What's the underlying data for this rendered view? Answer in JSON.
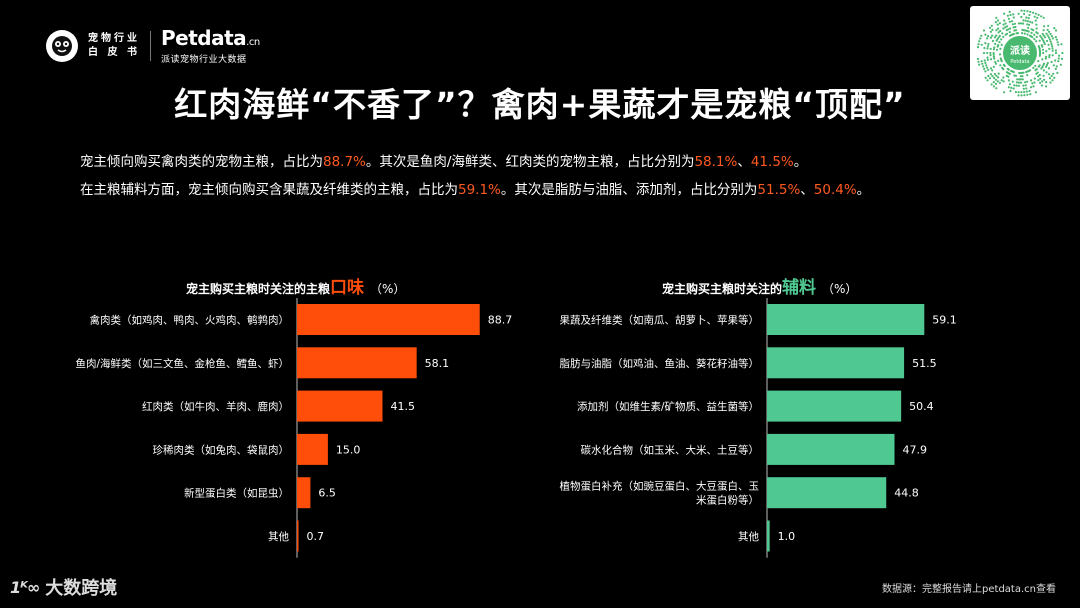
{
  "brand": {
    "cn_line1": "宠物行业",
    "cn_line2": "白 皮 书",
    "name": "Petdata",
    "name_suffix": ".cn",
    "tagline": "派读宠物行业大数据"
  },
  "qr": {
    "center_text": "派读",
    "center_sub": "Petdata"
  },
  "title": "红肉海鲜“不香了”？禽肉+果蔬才是宠粮“顶配”",
  "summary": {
    "line1": {
      "t1": "宠主倾向购买禽肉类的宠物主粮，占比为",
      "h1": "88.7%",
      "t2": "。其次是鱼肉/海鲜类、红肉类的宠物主粮，占比分别为",
      "h2": "58.1%",
      "t3": "、",
      "h3": "41.5%",
      "t4": "。"
    },
    "line2": {
      "t1": "在主粮辅料方面，宠主倾向购买含果蔬及纤维类的主粮，占比为",
      "h1": "59.1%",
      "t2": "。其次是脂肪与油脂、添加剂，占比分别为",
      "h2": "51.5%",
      "t3": "、",
      "h3": "50.4%",
      "t4": "。"
    }
  },
  "chart_data": [
    {
      "type": "bar",
      "orientation": "horizontal",
      "title_prefix": "宠主购买主粮时关注的主粮",
      "title_emphasis": "口味",
      "title_unit": "（%）",
      "color": "#ff4d0a",
      "emphasis_color": "#ff4d0a",
      "categories": [
        [
          "禽肉类（如鸡肉、鸭肉、火鸡肉、鹌鹑肉）"
        ],
        [
          "鱼肉/海鲜类（如三文鱼、金枪鱼、鳕鱼、虾）"
        ],
        [
          "红肉类（如牛肉、羊肉、鹿肉）"
        ],
        [
          "珍稀肉类（如兔肉、袋鼠肉）"
        ],
        [
          "新型蛋白类（如昆虫）"
        ],
        [
          "其他"
        ]
      ],
      "values": [
        88.7,
        58.1,
        41.5,
        15.0,
        6.5,
        0.7
      ],
      "labels": [
        "88.7",
        "58.1",
        "41.5",
        "15.0",
        "6.5",
        "0.7"
      ],
      "xlim": [
        0,
        100
      ]
    },
    {
      "type": "bar",
      "orientation": "horizontal",
      "title_prefix": "宠主购买主粮时关注的",
      "title_emphasis": "辅料",
      "title_unit": "（%）",
      "color": "#4fc892",
      "emphasis_color": "#4fc892",
      "categories": [
        [
          "果蔬及纤维类（如南瓜、胡萝卜、苹果等）"
        ],
        [
          "脂肪与油脂（如鸡油、鱼油、葵花籽油等）"
        ],
        [
          "添加剂（如维生素/矿物质、益生菌等）"
        ],
        [
          "碳水化合物（如玉米、大米、土豆等）"
        ],
        [
          "植物蛋白补充（如豌豆蛋白、大豆蛋白、玉",
          "米蛋白粉等）"
        ],
        [
          "其他"
        ]
      ],
      "values": [
        59.1,
        51.5,
        50.4,
        47.9,
        44.8,
        1.0
      ],
      "labels": [
        "59.1",
        "51.5",
        "50.4",
        "47.9",
        "44.8",
        "1.0"
      ],
      "xlim": [
        0,
        68
      ]
    }
  ],
  "footer": {
    "logo_mark": "1ᴷ∞",
    "logo_text": "大数跨境",
    "source": "数据源：完整报告请上petdata.cn查看"
  }
}
